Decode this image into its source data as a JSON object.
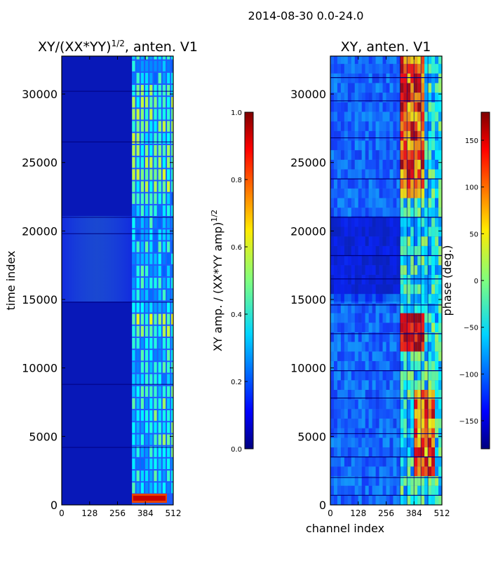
{
  "suptitle": "2014-08-30 0.0-24.0",
  "colors": {
    "jet": [
      "#00007f",
      "#0000ff",
      "#007fff",
      "#00ffff",
      "#7fff7f",
      "#ffff00",
      "#ff7f00",
      "#ff0000",
      "#7f0000"
    ],
    "frame": "#000000",
    "background": "#ffffff"
  },
  "chart_data": [
    {
      "type": "heatmap",
      "title_main": "XY/(XX*YY)",
      "title_sup": "1/2",
      "title_tail": ", anten. V1",
      "xlabel": "",
      "ylabel": "time index",
      "xlim": [
        0,
        512
      ],
      "ylim": [
        0,
        32768
      ],
      "xticks": [
        0,
        128,
        256,
        384,
        512
      ],
      "xticklabels": [
        "0",
        "128",
        "256",
        "384",
        "512"
      ],
      "yticks": [
        0,
        5000,
        10000,
        15000,
        20000,
        25000,
        30000
      ],
      "yticklabels": [
        "0",
        "5000",
        "10000",
        "15000",
        "20000",
        "25000",
        "30000"
      ],
      "colormap": "jet",
      "grid": false,
      "colorbar": {
        "label_main": "XY amp. / (XX*YY amp)",
        "label_sup": "1/2",
        "range": [
          0.0,
          1.0
        ],
        "ticks": [
          0.0,
          0.2,
          0.4,
          0.6,
          0.8,
          1.0
        ],
        "ticklabels": [
          "0.0",
          "0.2",
          "0.4",
          "0.6",
          "0.8",
          "1.0"
        ]
      },
      "regions": [
        {
          "channels": [
            0,
            320
          ],
          "time": [
            0,
            32768
          ],
          "value": 0.12
        },
        {
          "channels": [
            0,
            320
          ],
          "time": [
            14800,
            21000
          ],
          "value": 0.2
        },
        {
          "channels": [
            320,
            512
          ],
          "time": [
            0,
            32768
          ],
          "value": 0.35
        },
        {
          "channels": [
            320,
            512
          ],
          "time": [
            12000,
            14000
          ],
          "value": 0.55
        },
        {
          "channels": [
            320,
            512
          ],
          "time": [
            22000,
            30000
          ],
          "value": 0.5
        },
        {
          "channels": [
            320,
            512
          ],
          "time": [
            0,
            800
          ],
          "value": 0.85
        }
      ]
    },
    {
      "type": "heatmap",
      "title": "XY, anten. V1",
      "xlabel": "channel index",
      "ylabel": "",
      "xlim": [
        0,
        512
      ],
      "ylim": [
        0,
        32768
      ],
      "xticks": [
        0,
        128,
        256,
        384,
        512
      ],
      "xticklabels": [
        "0",
        "128",
        "256",
        "384",
        "512"
      ],
      "yticks": [
        0,
        5000,
        10000,
        15000,
        20000,
        25000,
        30000
      ],
      "yticklabels": [
        "0",
        "5000",
        "10000",
        "15000",
        "20000",
        "25000",
        "30000"
      ],
      "colormap": "jet",
      "grid": false,
      "colorbar": {
        "label": "phase (deg.)",
        "range": [
          -180,
          180
        ],
        "ticks": [
          -150,
          -100,
          -50,
          0,
          50,
          100,
          150
        ],
        "ticklabels": [
          "−150",
          "−100",
          "−50",
          "0",
          "50",
          "100",
          "150"
        ]
      },
      "regions": [
        {
          "channels": [
            0,
            320
          ],
          "time": [
            0,
            32768
          ],
          "value": -110
        },
        {
          "channels": [
            0,
            320
          ],
          "time": [
            15000,
            21000
          ],
          "value": -150
        },
        {
          "channels": [
            320,
            512
          ],
          "time": [
            0,
            32768
          ],
          "value": -20
        },
        {
          "channels": [
            320,
            430
          ],
          "time": [
            22000,
            32768
          ],
          "value": 130
        },
        {
          "channels": [
            320,
            420
          ],
          "time": [
            11000,
            14000
          ],
          "value": 150
        },
        {
          "channels": [
            380,
            470
          ],
          "time": [
            2000,
            8000
          ],
          "value": 120
        }
      ]
    }
  ]
}
